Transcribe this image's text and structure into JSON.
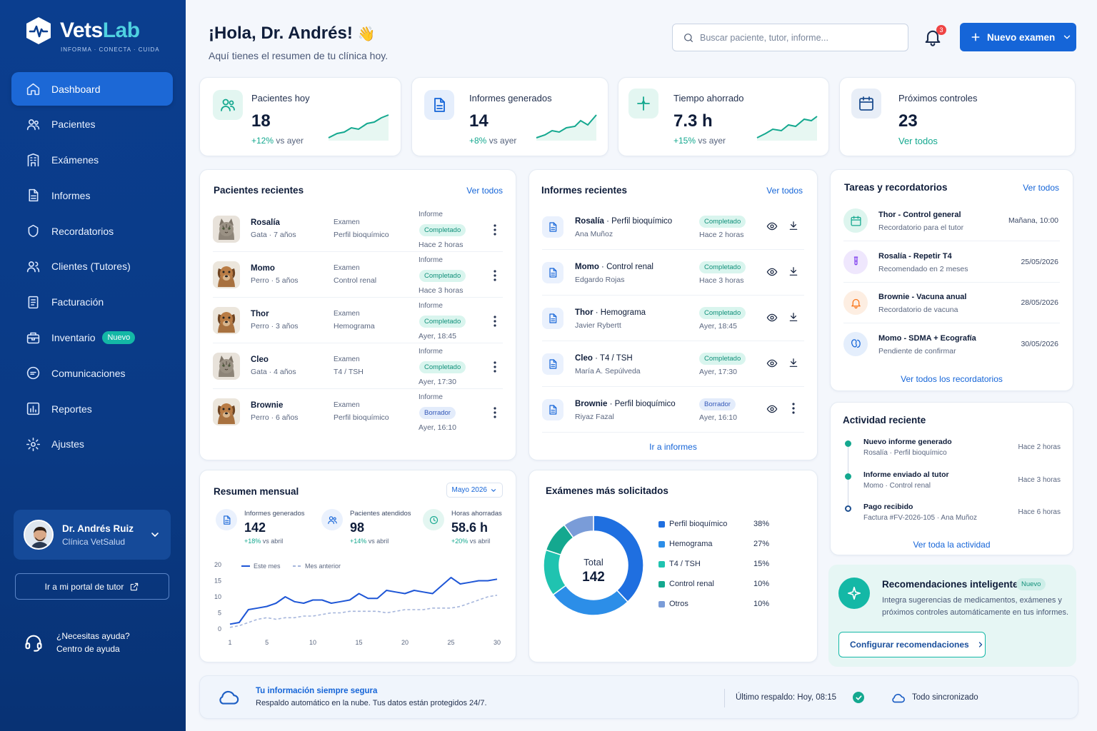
{
  "brand": {
    "name_a": "Vets",
    "name_b": "Lab",
    "tagline": "INFORMA · CONECTA · CUIDA"
  },
  "sidebar": {
    "items": [
      {
        "label": "Dashboard",
        "icon": "home-icon"
      },
      {
        "label": "Pacientes",
        "icon": "users-icon"
      },
      {
        "label": "Exámenes",
        "icon": "building-icon"
      },
      {
        "label": "Informes",
        "icon": "document-icon"
      },
      {
        "label": "Recordatorios",
        "icon": "reminder-icon"
      },
      {
        "label": "Clientes (Tutores)",
        "icon": "clients-icon"
      },
      {
        "label": "Facturación",
        "icon": "invoice-icon"
      },
      {
        "label": "Inventario",
        "icon": "inventory-icon",
        "badge": "Nuevo"
      },
      {
        "label": "Comunicaciones",
        "icon": "chat-icon"
      },
      {
        "label": "Reportes",
        "icon": "report-icon"
      },
      {
        "label": "Ajustes",
        "icon": "gear-icon"
      }
    ],
    "user": {
      "name": "Dr. Andrés Ruiz",
      "clinic": "Clínica VetSalud"
    },
    "portal_label": "Ir a mi portal de tutor",
    "help_line1": "¿Necesitas ayuda?",
    "help_line2": "Centro de ayuda"
  },
  "header": {
    "greeting": "¡Hola, Dr. Andrés!",
    "wave": "👋",
    "subtitle": "Aquí tienes el resumen de tu clínica hoy.",
    "search_placeholder": "Buscar paciente, tutor, informe...",
    "notif_count": "3",
    "new_button": "Nuevo examen"
  },
  "kpis": [
    {
      "label": "Pacientes hoy",
      "value": "18",
      "delta": "+12%",
      "delta_suffix": " vs ayer",
      "color": "#14a88f"
    },
    {
      "label": "Informes generados",
      "value": "14",
      "delta": "+8%",
      "delta_suffix": " vs ayer",
      "color": "#1565d8"
    },
    {
      "label": "Tiempo ahorrado",
      "value": "7.3 h",
      "delta": "+15%",
      "delta_suffix": " vs ayer",
      "color": "#14a88f"
    },
    {
      "label": "Próximos controles",
      "value": "23",
      "link": "Ver todos",
      "color": "#1e4f8f"
    }
  ],
  "recent_patients": {
    "title": "Pacientes recientes",
    "link": "Ver todos",
    "rows": [
      {
        "name": "Rosalía",
        "info": "Gata · 7 años",
        "exam_label": "Examen",
        "exam": "Perfil bioquímico",
        "report_label": "Informe",
        "status": "Completado",
        "time": "Hace 2 horas",
        "animal": "cat"
      },
      {
        "name": "Momo",
        "info": "Perro · 5 años",
        "exam_label": "Examen",
        "exam": "Control renal",
        "report_label": "Informe",
        "status": "Completado",
        "time": "Hace 3 horas",
        "animal": "dog"
      },
      {
        "name": "Thor",
        "info": "Perro · 3 años",
        "exam_label": "Examen",
        "exam": "Hemograma",
        "report_label": "Informe",
        "status": "Completado",
        "time": "Ayer, 18:45",
        "animal": "dog"
      },
      {
        "name": "Cleo",
        "info": "Gata · 4 años",
        "exam_label": "Examen",
        "exam": "T4 / TSH",
        "report_label": "Informe",
        "status": "Completado",
        "time": "Ayer, 17:30",
        "animal": "cat"
      },
      {
        "name": "Brownie",
        "info": "Perro · 6 años",
        "exam_label": "Examen",
        "exam": "Perfil bioquímico",
        "report_label": "Informe",
        "status": "Borrador",
        "time": "Ayer, 16:10",
        "animal": "dog"
      }
    ]
  },
  "recent_reports": {
    "title": "Informes recientes",
    "link": "Ver todos",
    "footer": "Ir a informes",
    "rows": [
      {
        "pet": "Rosalía",
        "exam": " · Perfil bioquímico",
        "owner": "Ana Muñoz",
        "status": "Completado",
        "time": "Hace 2 horas"
      },
      {
        "pet": "Momo",
        "exam": " · Control renal",
        "owner": "Edgardo Rojas",
        "status": "Completado",
        "time": "Hace 3 horas"
      },
      {
        "pet": "Thor",
        "exam": " · Hemograma",
        "owner": "Javier Rybertt",
        "status": "Completado",
        "time": "Ayer, 18:45"
      },
      {
        "pet": "Cleo",
        "exam": " · T4 / TSH",
        "owner": "María A. Sepúlveda",
        "status": "Completado",
        "time": "Ayer, 17:30"
      },
      {
        "pet": "Brownie",
        "exam": " · Perfil bioquímico",
        "owner": "Riyaz Fazal",
        "status": "Borrador",
        "time": "Ayer, 16:10"
      }
    ]
  },
  "tasks": {
    "title": "Tareas y recordatorios",
    "link": "Ver todos",
    "footer": "Ver todos los recordatorios",
    "rows": [
      {
        "title": "Thor - Control general",
        "sub": "Recordatorio para el tutor",
        "date": "Mañana, 10:00",
        "icon": "calendar-icon",
        "color": "#14a88f",
        "bg": "#ddf5ee"
      },
      {
        "title": "Rosalía - Repetir T4",
        "sub": "Recomendado en 2 meses",
        "date": "25/05/2026",
        "icon": "test-tube-icon",
        "color": "#7c3aed",
        "bg": "#efe7fd"
      },
      {
        "title": "Brownie - Vacuna anual",
        "sub": "Recordatorio de vacuna",
        "date": "28/05/2026",
        "icon": "bell-icon",
        "color": "#f97316",
        "bg": "#fdeee2"
      },
      {
        "title": "Momo - SDMA + Ecografía",
        "sub": "Pendiente de confirmar",
        "date": "30/05/2026",
        "icon": "kidney-icon",
        "color": "#1565d8",
        "bg": "#e4eefc"
      }
    ]
  },
  "activity": {
    "title": "Actividad reciente",
    "footer": "Ver toda la actividad",
    "rows": [
      {
        "title": "Nuevo informe generado",
        "sub": "Rosalía · Perfil bioquímico",
        "time": "Hace 2 horas"
      },
      {
        "title": "Informe enviado al tutor",
        "sub": "Momo · Control renal",
        "time": "Hace 3 horas"
      },
      {
        "title": "Pago recibido",
        "sub": "Factura #FV-2026-105 · Ana Muñoz",
        "time": "Hace 6 horas"
      }
    ]
  },
  "monthly": {
    "title": "Resumen mensual",
    "month": "Mayo 2026",
    "stats": [
      {
        "label": "Informes generados",
        "value": "142",
        "delta": "+18%",
        "suffix": " vs abril"
      },
      {
        "label": "Pacientes atendidos",
        "value": "98",
        "delta": "+14%",
        "suffix": " vs abril"
      },
      {
        "label": "Horas ahorradas",
        "value": "58.6 h",
        "delta": "+20%",
        "suffix": " vs abril"
      }
    ]
  },
  "exams_top": {
    "title": "Exámenes más solicitados",
    "total_label": "Total",
    "total": "142"
  },
  "recommend": {
    "title": "Recomendaciones inteligentes",
    "badge": "Nuevo",
    "text1": "Integra sugerencias de medicamentos, exámenes y",
    "text2": "próximos controles automáticamente en tus informes.",
    "button": "Configurar recomendaciones"
  },
  "footer_bar": {
    "title": "Tu información siempre segura",
    "text": "Respaldo automático en la nube. Tus datos están protegidos 24/7.",
    "backup": "Último respaldo: Hoy, 08:15",
    "sync": "Todo sincronizado"
  },
  "chart_data": [
    {
      "type": "line",
      "legend": [
        "Este mes",
        "Mes anterior"
      ],
      "x": [
        1,
        2,
        3,
        4,
        5,
        6,
        7,
        8,
        9,
        10,
        11,
        12,
        13,
        14,
        15,
        16,
        17,
        18,
        19,
        20,
        21,
        22,
        23,
        24,
        25,
        26,
        27,
        28,
        29,
        30
      ],
      "xticks": [
        1,
        5,
        10,
        15,
        20,
        25,
        30
      ],
      "yticks": [
        0,
        5,
        10,
        15,
        20
      ],
      "ylim": [
        0,
        20
      ],
      "series": [
        {
          "name": "Este mes",
          "values": [
            1.5,
            2,
            6,
            6.5,
            7,
            8,
            10,
            8.5,
            8,
            9,
            9,
            8,
            8.5,
            9,
            11,
            9.5,
            9.5,
            12,
            11.5,
            11,
            12,
            11.5,
            11,
            13.5,
            16,
            14,
            14.5,
            15,
            15,
            15.5
          ]
        },
        {
          "name": "Mes anterior",
          "values": [
            0.5,
            1,
            2,
            3,
            3.5,
            3,
            3.5,
            3.5,
            4,
            4,
            4.5,
            5,
            5,
            5.5,
            5.5,
            5.5,
            5.5,
            5,
            5.5,
            6,
            6,
            6,
            6.5,
            6.5,
            6.5,
            7,
            8,
            9,
            10,
            10.5
          ]
        }
      ]
    },
    {
      "type": "pie",
      "categories": [
        "Perfil bioquímico",
        "Hemograma",
        "T4 / TSH",
        "Control renal",
        "Otros"
      ],
      "values": [
        38,
        27,
        15,
        10,
        10
      ],
      "labels": [
        "38%",
        "27%",
        "15%",
        "10%",
        "10%"
      ],
      "colors": [
        "#1f6fe0",
        "#2c8ee8",
        "#20c3b0",
        "#14a88f",
        "#7a9cd8"
      ]
    }
  ]
}
